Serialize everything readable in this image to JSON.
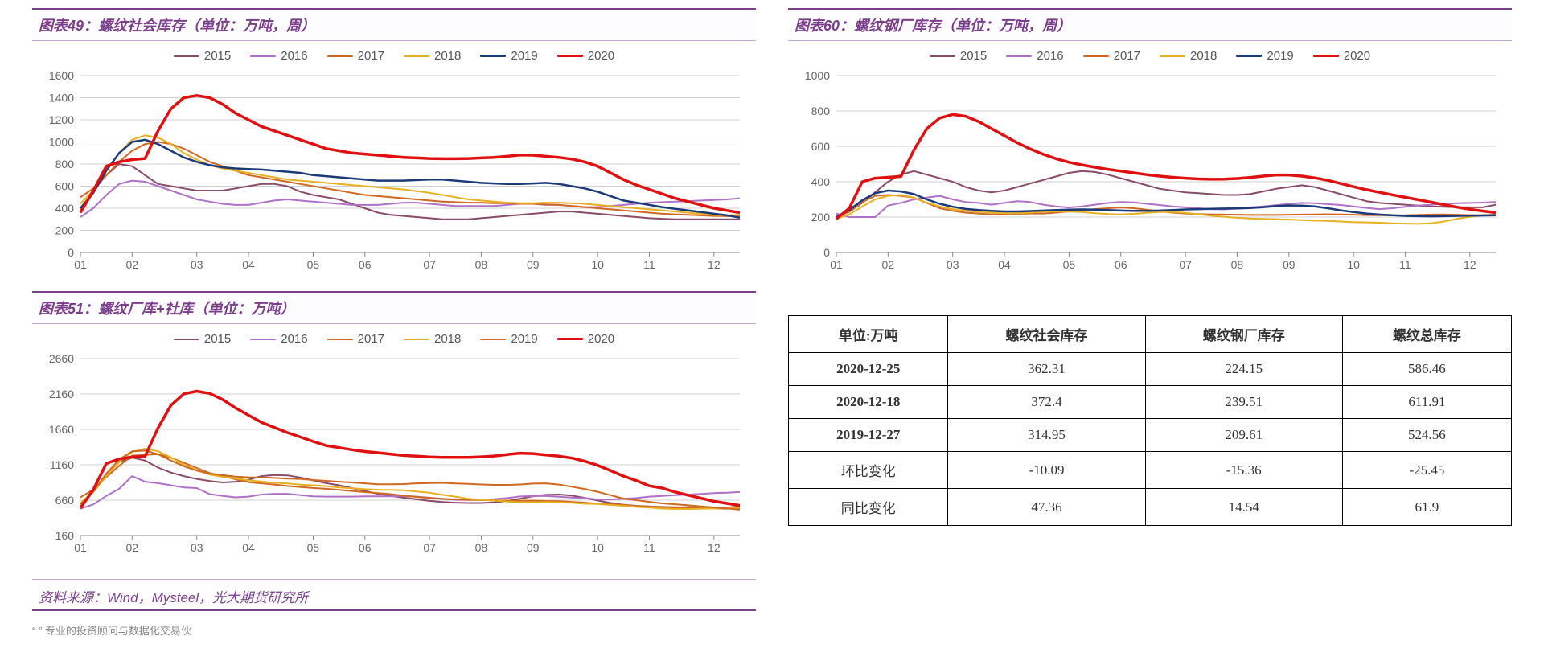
{
  "colors": {
    "axis": "#888888",
    "grid": "#d0d0d0",
    "title": "#7a3e8a",
    "border": "#7a3e8a"
  },
  "series_meta": {
    "labels": [
      "2015",
      "2016",
      "2017",
      "2018",
      "2019",
      "2020"
    ],
    "colors_12": [
      "#8a4a6a",
      "#b070c8",
      "#d06820",
      "#e8b020",
      "#1a3a7a",
      "#e01010"
    ],
    "colors_3": [
      "#8a4a6a",
      "#b070c8",
      "#d06820",
      "#e8b020",
      "#d06820",
      "#e01010"
    ],
    "widths_12": [
      2,
      2,
      2,
      2,
      2.5,
      3.5
    ],
    "widths_3": [
      2,
      2,
      2,
      2,
      2,
      3.5
    ]
  },
  "x_months": [
    "01",
    "02",
    "03",
    "04",
    "05",
    "06",
    "07",
    "08",
    "09",
    "10",
    "11",
    "12"
  ],
  "chart49": {
    "title": "图表49：螺纹社会库存（单位：万吨，周）",
    "ylim": [
      0,
      1600
    ],
    "ytick_step": 200,
    "data": {
      "2015": [
        380,
        560,
        700,
        800,
        780,
        700,
        620,
        600,
        580,
        560,
        560,
        560,
        580,
        600,
        620,
        620,
        600,
        550,
        520,
        500,
        480,
        440,
        400,
        360,
        340,
        330,
        320,
        310,
        300,
        300,
        300,
        310,
        320,
        330,
        340,
        350,
        360,
        370,
        370,
        360,
        350,
        340,
        330,
        320,
        310,
        305,
        300,
        300,
        300,
        300,
        300,
        300
      ],
      "2016": [
        320,
        400,
        520,
        620,
        650,
        640,
        600,
        560,
        520,
        480,
        460,
        440,
        430,
        430,
        450,
        470,
        480,
        470,
        460,
        450,
        440,
        430,
        430,
        430,
        440,
        450,
        450,
        440,
        430,
        420,
        420,
        420,
        420,
        430,
        440,
        440,
        430,
        430,
        420,
        410,
        410,
        420,
        430,
        440,
        450,
        455,
        460,
        465,
        470,
        475,
        480,
        490
      ],
      "2017": [
        500,
        580,
        700,
        820,
        920,
        980,
        1000,
        980,
        940,
        880,
        820,
        780,
        740,
        700,
        680,
        660,
        640,
        620,
        600,
        580,
        560,
        540,
        520,
        510,
        500,
        490,
        480,
        470,
        460,
        455,
        450,
        450,
        445,
        445,
        440,
        440,
        435,
        430,
        420,
        410,
        400,
        390,
        380,
        370,
        360,
        350,
        345,
        340,
        335,
        330,
        328,
        330
      ],
      "2018": [
        440,
        560,
        740,
        900,
        1020,
        1060,
        1040,
        980,
        900,
        840,
        790,
        760,
        740,
        720,
        700,
        680,
        660,
        650,
        640,
        630,
        620,
        610,
        600,
        590,
        580,
        570,
        555,
        540,
        520,
        500,
        480,
        470,
        460,
        450,
        445,
        445,
        450,
        450,
        445,
        440,
        430,
        420,
        410,
        400,
        390,
        380,
        370,
        360,
        350,
        340,
        335,
        340
      ],
      "2019": [
        400,
        540,
        740,
        900,
        1000,
        1020,
        980,
        920,
        860,
        820,
        790,
        770,
        760,
        755,
        750,
        740,
        730,
        720,
        700,
        690,
        680,
        670,
        660,
        650,
        650,
        650,
        655,
        660,
        660,
        650,
        640,
        630,
        625,
        620,
        620,
        625,
        630,
        620,
        600,
        580,
        550,
        510,
        470,
        450,
        430,
        410,
        395,
        380,
        365,
        350,
        335,
        315
      ],
      "2020": [
        360,
        560,
        780,
        820,
        840,
        850,
        1100,
        1300,
        1400,
        1420,
        1400,
        1340,
        1260,
        1200,
        1140,
        1100,
        1060,
        1020,
        980,
        940,
        920,
        900,
        890,
        880,
        870,
        860,
        855,
        850,
        848,
        848,
        850,
        855,
        860,
        870,
        882,
        880,
        870,
        860,
        845,
        820,
        780,
        720,
        660,
        610,
        570,
        530,
        490,
        460,
        430,
        400,
        380,
        360
      ]
    }
  },
  "chart60": {
    "title": "图表60：螺纹钢厂库存（单位：万吨，周）",
    "ylim": [
      0,
      1000
    ],
    "ytick_step": 200,
    "data": {
      "2015": [
        200,
        230,
        280,
        340,
        400,
        440,
        460,
        440,
        420,
        400,
        370,
        350,
        340,
        350,
        370,
        390,
        410,
        430,
        450,
        460,
        455,
        440,
        420,
        400,
        380,
        360,
        350,
        340,
        335,
        330,
        325,
        325,
        330,
        345,
        360,
        370,
        380,
        370,
        350,
        330,
        310,
        290,
        280,
        275,
        270,
        265,
        260,
        258,
        256,
        255,
        255,
        270
      ],
      "2016": [
        220,
        200,
        200,
        200,
        265,
        280,
        300,
        310,
        320,
        300,
        285,
        280,
        270,
        280,
        290,
        285,
        270,
        260,
        254,
        260,
        270,
        280,
        285,
        283,
        275,
        268,
        260,
        255,
        250,
        245,
        243,
        248,
        255,
        260,
        267,
        275,
        280,
        278,
        273,
        268,
        260,
        252,
        245,
        250,
        258,
        265,
        270,
        275,
        278,
        280,
        282,
        285
      ],
      "2017": [
        200,
        230,
        285,
        320,
        325,
        320,
        310,
        280,
        250,
        235,
        225,
        220,
        215,
        215,
        218,
        220,
        220,
        225,
        232,
        240,
        245,
        250,
        254,
        250,
        242,
        233,
        225,
        220,
        217,
        215,
        214,
        213,
        212,
        212,
        212,
        213,
        214,
        215,
        216,
        215,
        213,
        211,
        210,
        209,
        210,
        212,
        214,
        215,
        213,
        211,
        210,
        212
      ],
      "2018": [
        190,
        215,
        260,
        300,
        320,
        325,
        310,
        282,
        260,
        245,
        235,
        230,
        225,
        222,
        222,
        225,
        230,
        232,
        231,
        228,
        222,
        217,
        215,
        218,
        224,
        228,
        228,
        224,
        216,
        208,
        202,
        196,
        192,
        190,
        188,
        186,
        183,
        180,
        178,
        175,
        172,
        170,
        168,
        165,
        163,
        162,
        165,
        175,
        190,
        202,
        210,
        215
      ],
      "2019": [
        200,
        240,
        295,
        335,
        350,
        345,
        330,
        300,
        275,
        258,
        246,
        240,
        235,
        232,
        232,
        234,
        237,
        240,
        242,
        243,
        242,
        240,
        237,
        235,
        235,
        237,
        240,
        243,
        245,
        247,
        248,
        249,
        251,
        256,
        262,
        266,
        265,
        260,
        250,
        238,
        228,
        220,
        214,
        210,
        207,
        205,
        204,
        205,
        207,
        208,
        209,
        210
      ],
      "2020": [
        190,
        250,
        400,
        420,
        425,
        430,
        580,
        700,
        760,
        780,
        770,
        740,
        700,
        660,
        620,
        585,
        555,
        530,
        510,
        495,
        482,
        470,
        460,
        450,
        440,
        432,
        425,
        420,
        416,
        414,
        415,
        418,
        424,
        432,
        438,
        438,
        432,
        422,
        408,
        390,
        372,
        355,
        340,
        326,
        312,
        298,
        284,
        270,
        256,
        244,
        234,
        225
      ]
    }
  },
  "chart51": {
    "title": "图表51：螺纹厂库+社库（单位：万吨）",
    "ylim": [
      160,
      2660
    ],
    "ytick_step": 500,
    "data": {
      "2015": [
        570,
        790,
        1000,
        1200,
        1260,
        1220,
        1120,
        1050,
        1000,
        960,
        930,
        910,
        920,
        950,
        1000,
        1015,
        1010,
        980,
        940,
        900,
        870,
        830,
        790,
        750,
        720,
        695,
        672,
        650,
        635,
        625,
        620,
        620,
        628,
        648,
        680,
        715,
        735,
        740,
        725,
        693,
        655,
        620,
        595,
        580,
        570,
        565,
        558,
        560,
        560,
        558,
        556,
        570
      ],
      "2016": [
        540,
        600,
        720,
        820,
        1000,
        920,
        900,
        870,
        840,
        830,
        745,
        720,
        700,
        710,
        740,
        750,
        750,
        730,
        714,
        710,
        710,
        710,
        715,
        713,
        715,
        720,
        710,
        695,
        680,
        665,
        663,
        668,
        675,
        690,
        712,
        718,
        718,
        708,
        697,
        690,
        670,
        670,
        680,
        690,
        710,
        720,
        730,
        738,
        748,
        760,
        765,
        775
      ],
      "2017": [
        700,
        810,
        985,
        1145,
        1290,
        1300,
        1310,
        1260,
        1190,
        1115,
        1043,
        1000,
        955,
        915,
        898,
        880,
        860,
        846,
        832,
        820,
        806,
        790,
        774,
        760,
        745,
        723,
        705,
        690,
        678,
        670,
        664,
        661,
        658,
        654,
        653,
        654,
        649,
        645,
        636,
        625,
        612,
        601,
        594,
        576,
        570,
        561,
        560,
        555,
        548,
        542,
        540,
        545
      ],
      "2018": [
        620,
        775,
        1000,
        1200,
        1340,
        1387,
        1352,
        1264,
        1160,
        1085,
        1020,
        990,
        967,
        942,
        922,
        905,
        895,
        878,
        870,
        858,
        840,
        828,
        815,
        807,
        805,
        800,
        782,
        765,
        735,
        710,
        681,
        665,
        655,
        640,
        630,
        631,
        635,
        630,
        622,
        610,
        605,
        592,
        580,
        565,
        555,
        541,
        535,
        535,
        540,
        542,
        547,
        555
      ],
      "2019": [
        600,
        780,
        1035,
        1235,
        1350,
        1360,
        1310,
        1220,
        1140,
        1077,
        1035,
        1013,
        992,
        983,
        980,
        974,
        964,
        960,
        944,
        933,
        920,
        910,
        898,
        884,
        885,
        887,
        897,
        902,
        904,
        895,
        890,
        882,
        876,
        876,
        882,
        894,
        898,
        880,
        850,
        818,
        778,
        731,
        682,
        660,
        636,
        615,
        602,
        587,
        572,
        558,
        544,
        525
      ],
      "2020": [
        545,
        810,
        1178,
        1242,
        1270,
        1280,
        1680,
        2000,
        2162,
        2200,
        2168,
        2082,
        1962,
        1860,
        1760,
        1687,
        1614,
        1553,
        1490,
        1432,
        1402,
        1372,
        1348,
        1330,
        1310,
        1292,
        1282,
        1270,
        1265,
        1264,
        1265,
        1273,
        1284,
        1305,
        1324,
        1318,
        1300,
        1282,
        1255,
        1210,
        1153,
        1077,
        1000,
        936,
        862,
        830,
        775,
        730,
        687,
        644,
        614,
        585
      ]
    }
  },
  "table": {
    "headers": [
      "单位:万吨",
      "螺纹社会库存",
      "螺纹钢厂库存",
      "螺纹总库存"
    ],
    "rows": [
      {
        "head": "2020-12-25",
        "bold": true,
        "cells": [
          "362.31",
          "224.15",
          "586.46"
        ]
      },
      {
        "head": "2020-12-18",
        "bold": true,
        "cells": [
          "372.4",
          "239.51",
          "611.91"
        ]
      },
      {
        "head": "2019-12-27",
        "bold": true,
        "cells": [
          "314.95",
          "209.61",
          "524.56"
        ]
      },
      {
        "head": "环比变化",
        "bold": false,
        "cells": [
          "-10.09",
          "-15.36",
          "-25.45"
        ]
      },
      {
        "head": "同比变化",
        "bold": false,
        "cells": [
          "47.36",
          "14.54",
          "61.9"
        ]
      }
    ]
  },
  "source": "资料来源：Wind，Mysteel，光大期货研究所",
  "footnote": "“    ” 专业的投资顾问与数据化交易伙"
}
